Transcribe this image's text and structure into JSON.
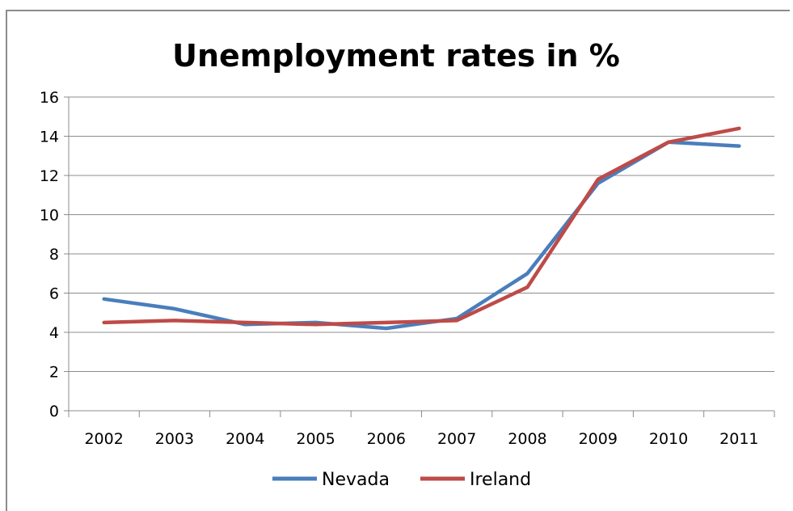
{
  "chart_data": {
    "type": "line",
    "title": "Unemployment rates in %",
    "xlabel": "",
    "ylabel": "",
    "categories": [
      "2002",
      "2003",
      "2004",
      "2005",
      "2006",
      "2007",
      "2008",
      "2009",
      "2010",
      "2011"
    ],
    "ylim": [
      0,
      16
    ],
    "yticks": [
      "0",
      "2",
      "4",
      "6",
      "8",
      "10",
      "12",
      "14",
      "16"
    ],
    "grid": true,
    "legend_position": "bottom",
    "series": [
      {
        "name": "Nevada",
        "color": "#4a7ebb",
        "values": [
          5.7,
          5.2,
          4.4,
          4.5,
          4.2,
          4.7,
          7.0,
          11.6,
          13.7,
          13.5
        ]
      },
      {
        "name": "Ireland",
        "color": "#be4b48",
        "values": [
          4.5,
          4.6,
          4.5,
          4.4,
          4.5,
          4.6,
          6.3,
          11.8,
          13.7,
          14.4
        ]
      }
    ]
  }
}
